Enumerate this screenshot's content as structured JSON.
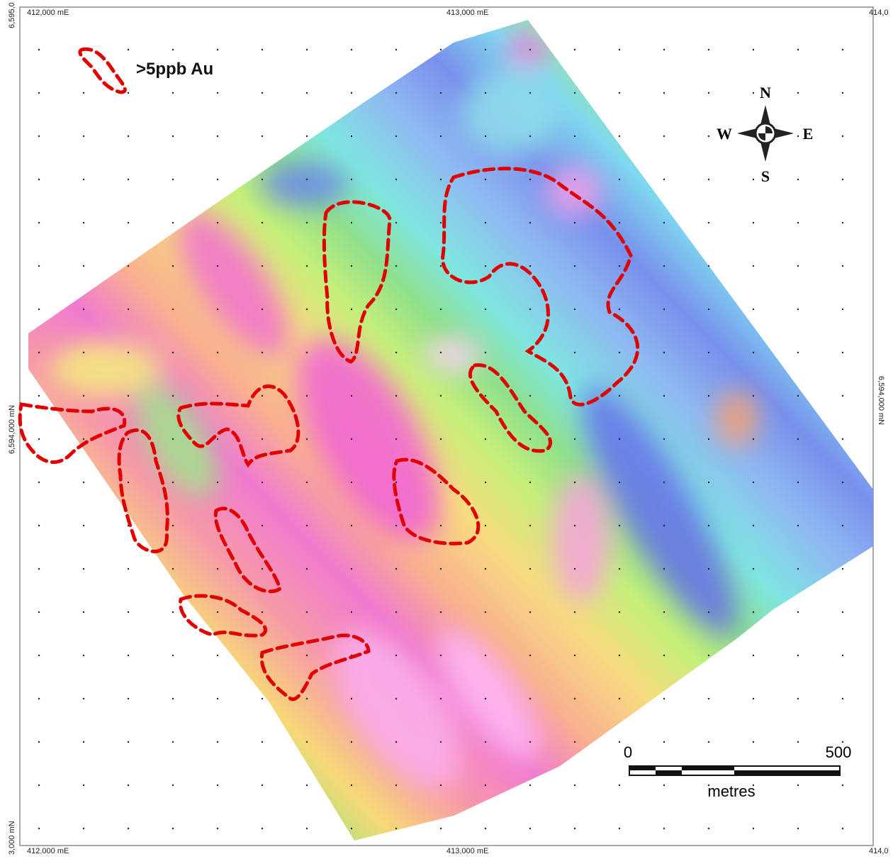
{
  "map": {
    "grid_labels": {
      "top": [
        "412,000 mE",
        "413,000 mE",
        "414,0"
      ],
      "bottom": [
        "412,000 mE",
        "413,000 mE",
        "414,0"
      ],
      "left": [
        "6,595,0",
        "6,594,000 mN",
        "3,000 mN"
      ],
      "right": [
        "6,594,000 mN"
      ]
    },
    "legend": {
      "label": ">5ppb Au"
    },
    "compass": {
      "n": "N",
      "e": "E",
      "s": "S",
      "w": "W"
    },
    "scale_bar": {
      "start": "0",
      "end": "500",
      "unit": "metres"
    }
  }
}
